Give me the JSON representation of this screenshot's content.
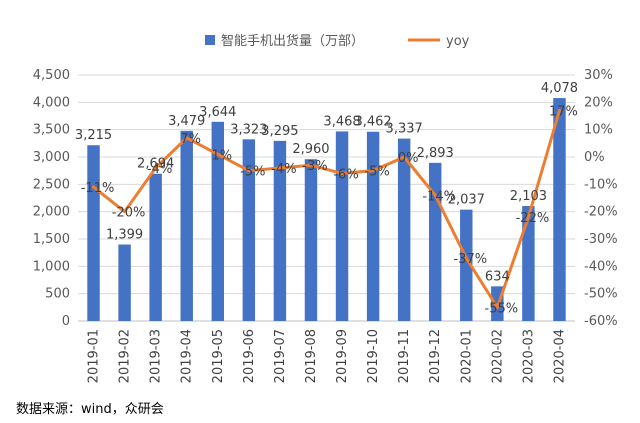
{
  "chart_data": {
    "type": "bar",
    "categories": [
      "2019-01",
      "2019-02",
      "2019-03",
      "2019-04",
      "2019-05",
      "2019-06",
      "2019-07",
      "2019-08",
      "2019-09",
      "2019-10",
      "2019-11",
      "2019-12",
      "2020-01",
      "2020-02",
      "2020-03",
      "2020-04"
    ],
    "series": [
      {
        "name": "智能手机出货量（万部）",
        "type": "bar",
        "axis": "left",
        "color": "#4472C4",
        "values": [
          3215,
          1399,
          2694,
          3479,
          3644,
          3323,
          3295,
          2960,
          3468,
          3462,
          3337,
          2893,
          2037,
          634,
          2103,
          4078
        ],
        "labels": [
          "3,215",
          "1,399",
          "2,694",
          "3,479",
          "3,644",
          "3,323",
          "3,295",
          "2,960",
          "3,468",
          "3,462",
          "3,337",
          "2,893",
          "2,037",
          "634",
          "2,103",
          "4,078"
        ]
      },
      {
        "name": "yoy",
        "type": "line",
        "axis": "right",
        "color": "#ED7D31",
        "values": [
          -11,
          -20,
          -4,
          7,
          1,
          -5,
          -4,
          -3,
          -6,
          -5,
          0,
          -14,
          -37,
          -55,
          -22,
          17
        ],
        "labels": [
          "-11%",
          "-20%",
          "-4%",
          "7%",
          "1%",
          "-5%",
          "-4%",
          "-3%",
          "-6%",
          "-5%",
          "0%",
          "-14%",
          "-37%",
          "-55%",
          "-22%",
          "17%"
        ]
      }
    ],
    "yleft": {
      "range": [
        0,
        4500
      ],
      "ticks": [
        "0",
        "500",
        "1,000",
        "1,500",
        "2,000",
        "2,500",
        "3,000",
        "3,500",
        "4,000",
        "4,500"
      ]
    },
    "yright": {
      "range": [
        -60,
        30
      ],
      "ticks": [
        "-60%",
        "-50%",
        "-40%",
        "-30%",
        "-20%",
        "-10%",
        "0%",
        "10%",
        "20%",
        "30%"
      ]
    },
    "grid": true,
    "legend_position": "top"
  },
  "source": "数据来源：wind，众研会"
}
